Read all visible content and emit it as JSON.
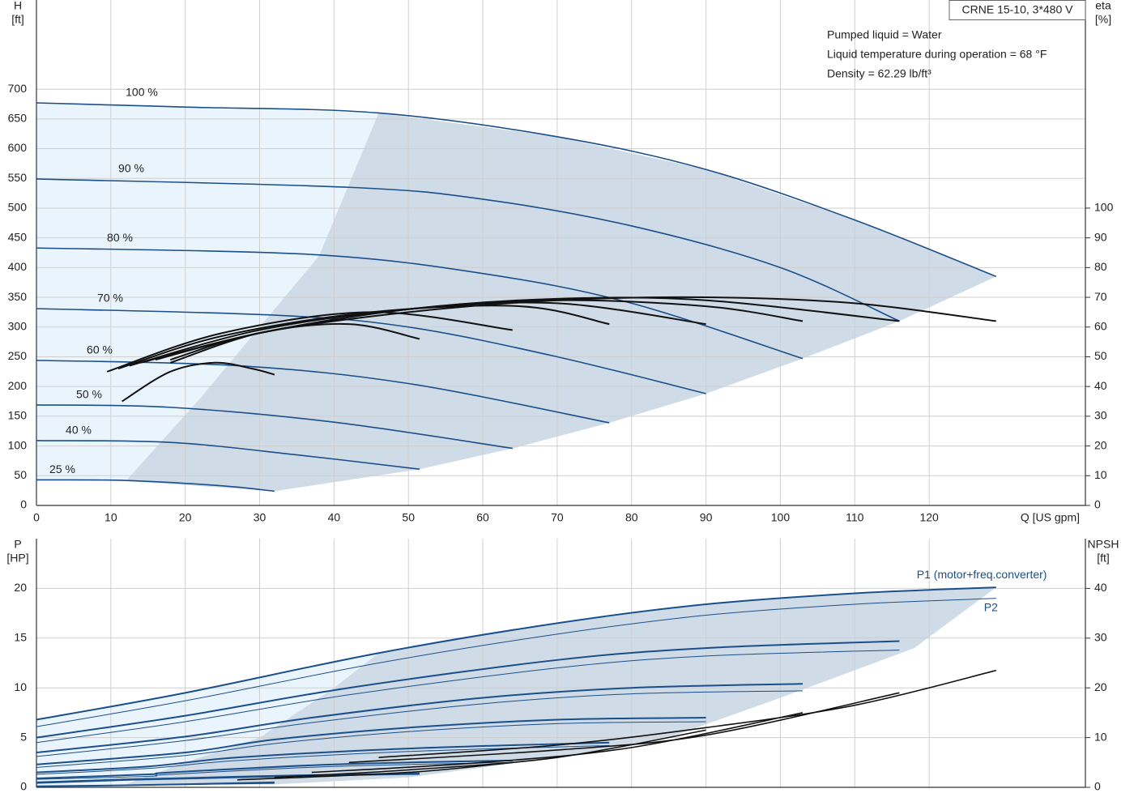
{
  "chart_data": [
    {
      "type": "line",
      "x_label": "Q [US gpm]",
      "y_label": "H",
      "y_unit": "[ft]",
      "y2_label": "eta",
      "y2_unit": "[%]",
      "info_box": "CRNE 15-10, 3*480 V",
      "annotations": [
        "Pumped liquid = Water",
        "Liquid temperature during operation = 68 °F",
        "Density = 62.29 lb/ft³"
      ],
      "xlim": [
        0,
        141
      ],
      "ylim": [
        0,
        850
      ],
      "y2lim": [
        0,
        170
      ],
      "xticks": [
        0,
        10,
        20,
        30,
        40,
        50,
        60,
        70,
        80,
        90,
        100,
        110,
        120
      ],
      "yticks": [
        0,
        50,
        100,
        150,
        200,
        250,
        300,
        350,
        400,
        450,
        500,
        550,
        600,
        650,
        700
      ],
      "y2ticks": [
        0,
        10,
        20,
        30,
        40,
        50,
        60,
        70,
        80,
        90,
        100
      ],
      "xtick_labels": true,
      "grid": true,
      "areas": [
        {
          "color": "#eaf4fc",
          "x": [
            0,
            20,
            46,
            38,
            30,
            22,
            12,
            0
          ],
          "values": [
            677,
            670,
            660,
            420,
            300,
            180,
            41,
            43
          ]
        },
        {
          "color": "#cfdbe6",
          "x": [
            46,
            70,
            90,
            110,
            129,
            116,
            103,
            90,
            77,
            64,
            51.5,
            32,
            12,
            22,
            30,
            38
          ],
          "values": [
            660,
            620,
            565,
            480,
            385,
            310,
            247,
            188,
            139,
            96,
            61,
            24,
            41,
            180,
            300,
            420
          ]
        }
      ],
      "series": [
        {
          "name": "100 %",
          "color": "#1a4f8a",
          "linewidth": 1.6,
          "x": [
            0,
            20,
            46,
            70,
            90,
            110,
            129
          ],
          "values": [
            677,
            670,
            660,
            620,
            565,
            480,
            385
          ]
        },
        {
          "name": "90 %",
          "color": "#1a4f8a",
          "linewidth": 1.6,
          "x": [
            0,
            42,
            60,
            80,
            100,
            116
          ],
          "values": [
            549,
            535,
            515,
            470,
            400,
            310
          ]
        },
        {
          "name": "80 %",
          "color": "#1a4f8a",
          "linewidth": 1.6,
          "x": [
            0,
            37,
            60,
            80,
            103
          ],
          "values": [
            433,
            422,
            390,
            340,
            247
          ]
        },
        {
          "name": "70 %",
          "color": "#1a4f8a",
          "linewidth": 1.6,
          "x": [
            0,
            32,
            50,
            70,
            90
          ],
          "values": [
            331,
            320,
            300,
            250,
            188
          ]
        },
        {
          "name": "60 %",
          "color": "#1a4f8a",
          "linewidth": 1.6,
          "x": [
            0,
            27,
            50,
            77
          ],
          "values": [
            244,
            235,
            205,
            139
          ]
        },
        {
          "name": "50 %",
          "color": "#1a4f8a",
          "linewidth": 1.6,
          "x": [
            0,
            18,
            40,
            64
          ],
          "values": [
            169,
            165,
            140,
            96
          ]
        },
        {
          "name": "40 %",
          "color": "#1a4f8a",
          "linewidth": 1.6,
          "x": [
            0,
            18,
            35,
            51.5
          ],
          "values": [
            109,
            106,
            85,
            61
          ]
        },
        {
          "name": "25 %",
          "color": "#1a4f8a",
          "linewidth": 1.6,
          "x": [
            0,
            12,
            25,
            32
          ],
          "values": [
            43,
            42,
            33,
            24
          ]
        },
        {
          "axis": "y2",
          "color": "#111111",
          "linewidth": 2,
          "x": [
            18,
            30,
            50,
            70,
            90,
            110,
            129
          ],
          "values": [
            49,
            58,
            65,
            69,
            70,
            68,
            62
          ]
        },
        {
          "axis": "y2",
          "color": "#111111",
          "linewidth": 2,
          "x": [
            16,
            30,
            50,
            70,
            90,
            116
          ],
          "values": [
            49,
            58,
            66,
            69.5,
            69,
            62
          ]
        },
        {
          "axis": "y2",
          "color": "#111111",
          "linewidth": 2,
          "x": [
            14,
            30,
            50,
            70,
            90,
            103
          ],
          "values": [
            48,
            58,
            66,
            69,
            67,
            62
          ]
        },
        {
          "axis": "y2",
          "color": "#111111",
          "linewidth": 2,
          "x": [
            12.5,
            30,
            50,
            70,
            90
          ],
          "values": [
            47,
            59,
            66,
            68,
            61
          ]
        },
        {
          "axis": "y2",
          "color": "#111111",
          "linewidth": 2,
          "x": [
            11,
            25,
            45,
            65,
            77
          ],
          "values": [
            46,
            57,
            65,
            67,
            61
          ]
        },
        {
          "axis": "y2",
          "color": "#111111",
          "linewidth": 2,
          "x": [
            9.5,
            25,
            45,
            64
          ],
          "values": [
            45,
            58,
            65,
            59
          ]
        },
        {
          "axis": "y2",
          "color": "#111111",
          "linewidth": 2,
          "x": [
            18,
            30,
            42,
            51.5
          ],
          "values": [
            48,
            58,
            61,
            56
          ]
        },
        {
          "axis": "y2",
          "color": "#111111",
          "linewidth": 2,
          "x": [
            11.5,
            18,
            24,
            29,
            32
          ],
          "values": [
            35,
            45,
            48,
            46,
            44
          ]
        }
      ]
    },
    {
      "type": "line",
      "y_label": "P",
      "y_unit": "[HP]",
      "y2_label": "NPSH",
      "y2_unit": "[ft]",
      "xlim": [
        0,
        141
      ],
      "ylim": [
        0,
        25
      ],
      "y2lim": [
        0,
        50
      ],
      "xticks": [
        0,
        10,
        20,
        30,
        40,
        50,
        60,
        70,
        80,
        90,
        100,
        110,
        120
      ],
      "yticks": [
        0,
        5,
        10,
        15,
        20
      ],
      "y2ticks": [
        0,
        10,
        20,
        30,
        40
      ],
      "xtick_labels": false,
      "grid": true,
      "areas": [
        {
          "color": "#eaf4fc",
          "x": [
            0,
            20,
            46,
            40,
            30,
            20,
            12,
            0
          ],
          "values": [
            6.8,
            9.5,
            13.5,
            10,
            5,
            2.5,
            0.3,
            0
          ]
        },
        {
          "color": "#cfdbe6",
          "x": [
            46,
            70,
            90,
            110,
            129,
            118,
            100,
            85,
            70,
            50,
            32,
            12,
            20,
            30,
            40
          ],
          "values": [
            13.5,
            16.5,
            18.4,
            19.5,
            20.1,
            14,
            9,
            5,
            3,
            1,
            0.3,
            0.3,
            2.5,
            5,
            10
          ]
        }
      ],
      "series": [
        {
          "name": "P1 (motor+freq.converter)",
          "color": "#1a4f8a",
          "linewidth": 2,
          "x": [
            0,
            20,
            46,
            70,
            90,
            110,
            129
          ],
          "values": [
            6.8,
            9.5,
            13.5,
            16.5,
            18.4,
            19.5,
            20.1
          ]
        },
        {
          "name": "P2",
          "color": "#1a4f8a",
          "linewidth": 1,
          "x": [
            0,
            20,
            46,
            70,
            90,
            110,
            129
          ],
          "values": [
            6.1,
            8.7,
            12.5,
            15.4,
            17.3,
            18.4,
            19.0
          ]
        },
        {
          "color": "#1a4f8a",
          "linewidth": 2,
          "x": [
            0,
            20,
            42,
            70,
            90,
            116
          ],
          "values": [
            5.0,
            7.2,
            10.0,
            12.8,
            14.0,
            14.7
          ]
        },
        {
          "color": "#1a4f8a",
          "linewidth": 1,
          "x": [
            0,
            20,
            42,
            70,
            90,
            116
          ],
          "values": [
            4.5,
            6.6,
            9.3,
            12.0,
            13.2,
            13.8
          ]
        },
        {
          "color": "#1a4f8a",
          "linewidth": 2,
          "x": [
            0,
            20,
            37,
            60,
            80,
            103
          ],
          "values": [
            3.5,
            5.1,
            7.0,
            9.0,
            10.0,
            10.4
          ]
        },
        {
          "color": "#1a4f8a",
          "linewidth": 1,
          "x": [
            0,
            20,
            37,
            60,
            80,
            103
          ],
          "values": [
            3.1,
            4.7,
            6.5,
            8.4,
            9.4,
            9.7
          ]
        },
        {
          "color": "#1a4f8a",
          "linewidth": 2,
          "x": [
            0,
            20,
            32,
            50,
            70,
            90
          ],
          "values": [
            2.3,
            3.5,
            4.8,
            6.0,
            6.8,
            7.0
          ]
        },
        {
          "color": "#1a4f8a",
          "linewidth": 1,
          "x": [
            0,
            20,
            32,
            50,
            70,
            90
          ],
          "values": [
            2.0,
            3.2,
            4.4,
            5.6,
            6.4,
            6.6
          ]
        },
        {
          "color": "#1a4f8a",
          "linewidth": 2,
          "x": [
            0,
            15,
            27,
            50,
            77
          ],
          "values": [
            1.5,
            2.1,
            3.0,
            3.9,
            4.5
          ]
        },
        {
          "color": "#1a4f8a",
          "linewidth": 1,
          "x": [
            0,
            15,
            27,
            50,
            77
          ],
          "values": [
            1.3,
            1.9,
            2.7,
            3.6,
            4.2
          ]
        },
        {
          "color": "#1a4f8a",
          "linewidth": 2,
          "x": [
            0,
            15,
            18,
            40,
            64
          ],
          "values": [
            0.9,
            1.3,
            1.5,
            2.3,
            2.7
          ]
        },
        {
          "color": "#1a4f8a",
          "linewidth": 1,
          "x": [
            0,
            15,
            18,
            40,
            64
          ],
          "values": [
            0.8,
            1.1,
            1.3,
            2.1,
            2.5
          ]
        },
        {
          "color": "#1a4f8a",
          "linewidth": 2,
          "x": [
            0,
            12,
            18,
            35,
            51.5
          ],
          "values": [
            0.5,
            0.8,
            0.9,
            1.2,
            1.4
          ]
        },
        {
          "color": "#1a4f8a",
          "linewidth": 1,
          "x": [
            0,
            12,
            18,
            35,
            51.5
          ],
          "values": [
            0.4,
            0.7,
            0.8,
            1.1,
            1.3
          ]
        },
        {
          "color": "#1a4f8a",
          "linewidth": 2,
          "x": [
            0,
            12,
            32
          ],
          "values": [
            0.1,
            0.2,
            0.5
          ]
        },
        {
          "color": "#1a4f8a",
          "linewidth": 1,
          "x": [
            0,
            12,
            32
          ],
          "values": [
            0.1,
            0.2,
            0.4
          ]
        },
        {
          "axis": "y2",
          "color": "#111111",
          "linewidth": 1.6,
          "x": [
            46,
            70,
            90,
            110,
            129
          ],
          "values": [
            6,
            8.5,
            12,
            16.5,
            23.5
          ]
        },
        {
          "axis": "y2",
          "color": "#111111",
          "linewidth": 1.6,
          "x": [
            42,
            70,
            90,
            116
          ],
          "values": [
            5,
            7.5,
            10.5,
            19
          ]
        },
        {
          "axis": "y2",
          "color": "#111111",
          "linewidth": 1.6,
          "x": [
            37,
            60,
            80,
            103
          ],
          "values": [
            3,
            5,
            8,
            15
          ]
        },
        {
          "axis": "y2",
          "color": "#111111",
          "linewidth": 1.6,
          "x": [
            32,
            50,
            70,
            90
          ],
          "values": [
            2,
            3.5,
            6,
            11.5
          ]
        },
        {
          "axis": "y2",
          "color": "#111111",
          "linewidth": 1.6,
          "x": [
            27,
            50,
            64
          ],
          "values": [
            1.5,
            3,
            5
          ]
        }
      ]
    }
  ]
}
